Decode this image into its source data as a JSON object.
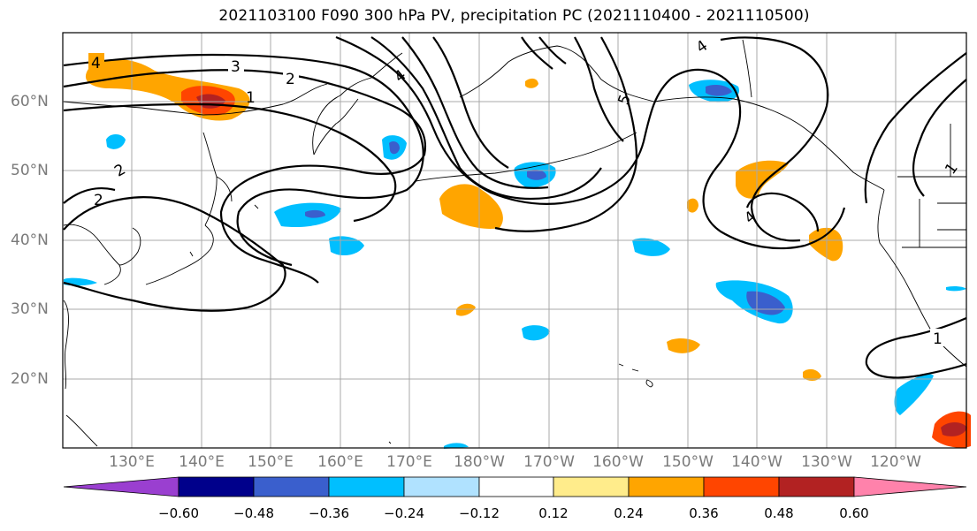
{
  "title": "2021103100 F090 300 hPa PV, precipitation PC (2021110400 - 2021110500)",
  "lat_labels": [
    "60°N",
    "50°N",
    "40°N",
    "30°N",
    "20°N"
  ],
  "lon_labels": [
    "130°E",
    "140°E",
    "150°E",
    "160°E",
    "170°E",
    "180°W",
    "170°W",
    "160°W",
    "150°W",
    "140°W",
    "130°W",
    "120°W"
  ],
  "contour_labels": [
    "4",
    "3",
    "2",
    "1",
    "4",
    "2",
    "4",
    "5",
    "4",
    "1",
    "2",
    "1"
  ],
  "colorbar": {
    "ticks": [
      "−0.60",
      "−0.48",
      "−0.36",
      "−0.24",
      "−0.12",
      "0.12",
      "0.24",
      "0.36",
      "0.48",
      "0.60"
    ],
    "colors": [
      "#9a3fd0",
      "#00008b",
      "#3a5fcd",
      "#00bfff",
      "#b0e2ff",
      "#ffffff",
      "#ffec8b",
      "#ffa500",
      "#ff4500",
      "#b22222",
      "#ff82ab"
    ]
  },
  "colors": {
    "pos_light": "#ffec8b",
    "pos_mid": "#ffa500",
    "pos_strong": "#ff4500",
    "pos_max": "#b22222",
    "neg_light": "#b0e2ff",
    "neg_mid": "#00bfff",
    "neg_strong": "#3a5fcd",
    "neg_max": "#00008b",
    "grid": "#a9a9a9",
    "contour": "#000000"
  }
}
